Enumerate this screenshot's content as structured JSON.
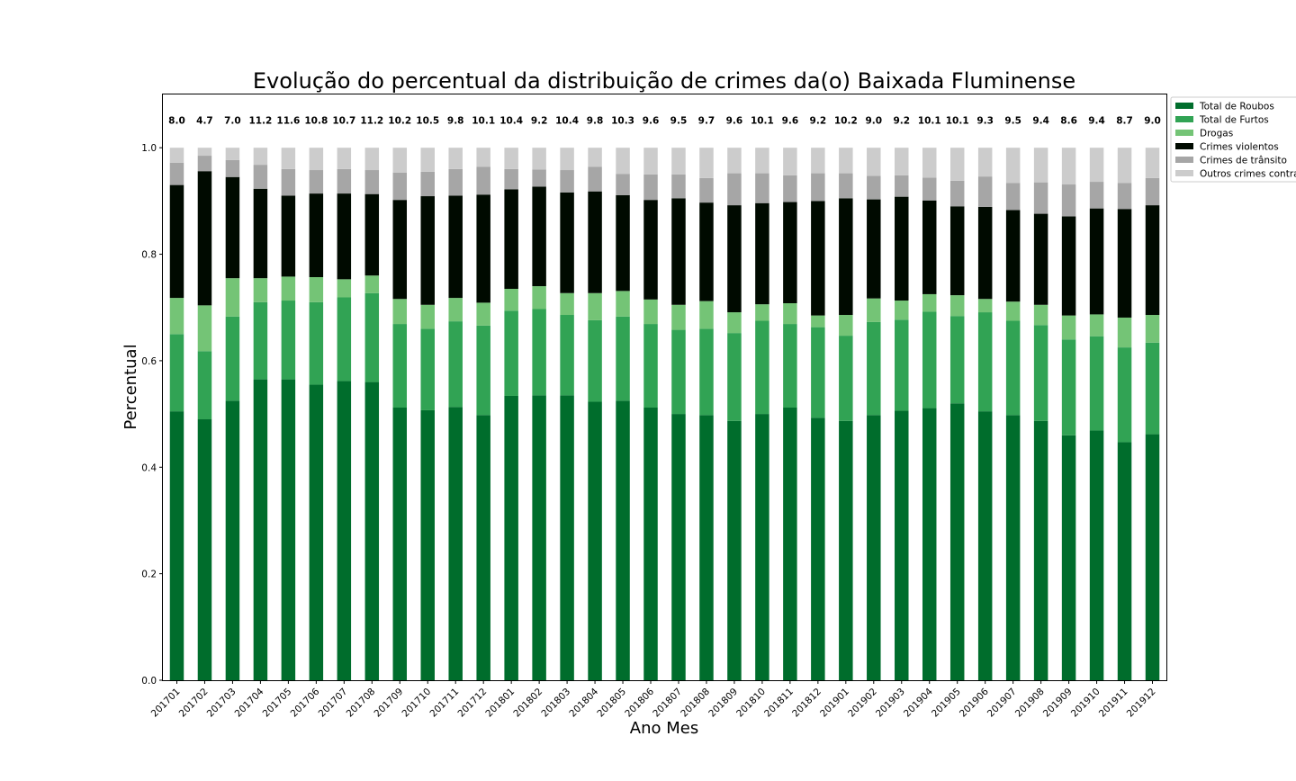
{
  "chart_data": {
    "type": "bar",
    "stacked": true,
    "title": "Evolução do percentual da distribuição de crimes da(o) Baixada Fluminense",
    "xlabel": "Ano Mes",
    "ylabel": "Percentual",
    "ylim": [
      0,
      1.1
    ],
    "yticks": [
      "0.0",
      "0.2",
      "0.4",
      "0.6",
      "0.8",
      "1.0"
    ],
    "legend_position": "top-right",
    "grid": false,
    "categories": [
      "201701",
      "201702",
      "201703",
      "201704",
      "201705",
      "201706",
      "201707",
      "201708",
      "201709",
      "201710",
      "201711",
      "201712",
      "201801",
      "201802",
      "201803",
      "201804",
      "201805",
      "201806",
      "201807",
      "201808",
      "201809",
      "201810",
      "201811",
      "201812",
      "201901",
      "201902",
      "201903",
      "201904",
      "201905",
      "201906",
      "201907",
      "201908",
      "201909",
      "201910",
      "201911",
      "201912"
    ],
    "top_labels": [
      "8.0",
      "4.7",
      "7.0",
      "11.2",
      "11.6",
      "10.8",
      "10.7",
      "11.2",
      "10.2",
      "10.5",
      "9.8",
      "10.1",
      "10.4",
      "9.2",
      "10.4",
      "9.8",
      "10.3",
      "9.6",
      "9.5",
      "9.7",
      "9.6",
      "10.1",
      "9.6",
      "9.2",
      "10.2",
      "9.0",
      "9.2",
      "10.1",
      "10.1",
      "9.3",
      "9.5",
      "9.4",
      "8.6",
      "9.4",
      "8.7",
      "9.0"
    ],
    "series": [
      {
        "name": "Total de Roubos",
        "color": "#006d2c",
        "values": [
          0.505,
          0.49,
          0.525,
          0.565,
          0.565,
          0.555,
          0.562,
          0.56,
          0.512,
          0.507,
          0.513,
          0.498,
          0.534,
          0.535,
          0.535,
          0.523,
          0.525,
          0.512,
          0.5,
          0.498,
          0.487,
          0.5,
          0.512,
          0.493,
          0.487,
          0.498,
          0.506,
          0.511,
          0.52,
          0.505,
          0.498,
          0.487,
          0.46,
          0.469,
          0.447,
          0.462
        ]
      },
      {
        "name": "Total de Furtos",
        "color": "#31a354",
        "values": [
          0.145,
          0.128,
          0.158,
          0.145,
          0.148,
          0.155,
          0.157,
          0.167,
          0.157,
          0.153,
          0.161,
          0.168,
          0.16,
          0.162,
          0.151,
          0.153,
          0.158,
          0.157,
          0.158,
          0.162,
          0.165,
          0.175,
          0.157,
          0.17,
          0.16,
          0.175,
          0.171,
          0.181,
          0.164,
          0.186,
          0.177,
          0.18,
          0.18,
          0.177,
          0.178,
          0.172
        ]
      },
      {
        "name": "Drogas",
        "color": "#74c476",
        "values": [
          0.068,
          0.086,
          0.072,
          0.045,
          0.045,
          0.047,
          0.034,
          0.033,
          0.047,
          0.045,
          0.044,
          0.043,
          0.041,
          0.043,
          0.041,
          0.051,
          0.048,
          0.046,
          0.047,
          0.052,
          0.039,
          0.031,
          0.039,
          0.022,
          0.039,
          0.044,
          0.036,
          0.033,
          0.039,
          0.025,
          0.036,
          0.038,
          0.045,
          0.041,
          0.056,
          0.052
        ]
      },
      {
        "name": "Crimes violentos",
        "color": "#000a00",
        "values": [
          0.212,
          0.252,
          0.19,
          0.168,
          0.152,
          0.157,
          0.161,
          0.153,
          0.186,
          0.204,
          0.192,
          0.203,
          0.187,
          0.187,
          0.189,
          0.191,
          0.18,
          0.187,
          0.2,
          0.185,
          0.201,
          0.19,
          0.19,
          0.215,
          0.219,
          0.186,
          0.195,
          0.176,
          0.167,
          0.173,
          0.172,
          0.171,
          0.186,
          0.199,
          0.204,
          0.206
        ]
      },
      {
        "name": "Crimes de trânsito",
        "color": "#a6a6a6",
        "values": [
          0.042,
          0.029,
          0.032,
          0.045,
          0.05,
          0.044,
          0.046,
          0.045,
          0.051,
          0.046,
          0.05,
          0.052,
          0.038,
          0.032,
          0.042,
          0.046,
          0.04,
          0.048,
          0.045,
          0.046,
          0.06,
          0.056,
          0.05,
          0.052,
          0.047,
          0.044,
          0.04,
          0.043,
          0.048,
          0.057,
          0.051,
          0.059,
          0.06,
          0.05,
          0.049,
          0.051
        ]
      },
      {
        "name": "Outros crimes contra",
        "color": "#cccccc",
        "values": [
          0.028,
          0.015,
          0.023,
          0.032,
          0.04,
          0.042,
          0.04,
          0.042,
          0.047,
          0.045,
          0.04,
          0.036,
          0.04,
          0.041,
          0.042,
          0.036,
          0.049,
          0.05,
          0.05,
          0.057,
          0.048,
          0.048,
          0.052,
          0.048,
          0.048,
          0.053,
          0.052,
          0.056,
          0.062,
          0.054,
          0.066,
          0.065,
          0.069,
          0.064,
          0.066,
          0.057
        ]
      }
    ]
  }
}
